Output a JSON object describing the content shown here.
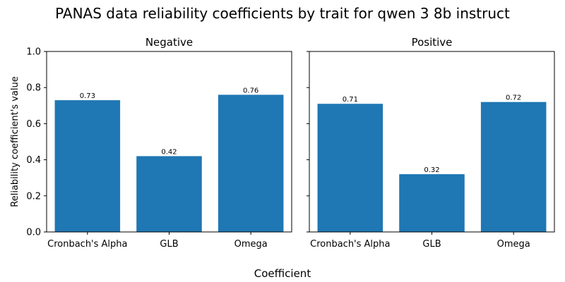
{
  "title": "PANAS data reliability coefficients by trait for qwen 3 8b instruct",
  "xlabel": "Coefficient",
  "ylabel": "Reliability coefficient's value",
  "colors": {
    "bar": "#1f77b4"
  },
  "chart_data": [
    {
      "type": "bar",
      "title": "Negative",
      "categories": [
        "Cronbach's Alpha",
        "GLB",
        "Omega"
      ],
      "values": [
        0.73,
        0.42,
        0.76
      ],
      "data_labels": [
        "0.73",
        "0.42",
        "0.76"
      ],
      "ylim": [
        0,
        1.0
      ],
      "yticks": [
        "0.0",
        "0.2",
        "0.4",
        "0.6",
        "0.8",
        "1.0"
      ],
      "grid": false
    },
    {
      "type": "bar",
      "title": "Positive",
      "categories": [
        "Cronbach's Alpha",
        "GLB",
        "Omega"
      ],
      "values": [
        0.71,
        0.32,
        0.72
      ],
      "data_labels": [
        "0.71",
        "0.32",
        "0.72"
      ],
      "ylim": [
        0,
        1.0
      ],
      "yticks": [
        "0.0",
        "0.2",
        "0.4",
        "0.6",
        "0.8",
        "1.0"
      ],
      "grid": false
    }
  ]
}
